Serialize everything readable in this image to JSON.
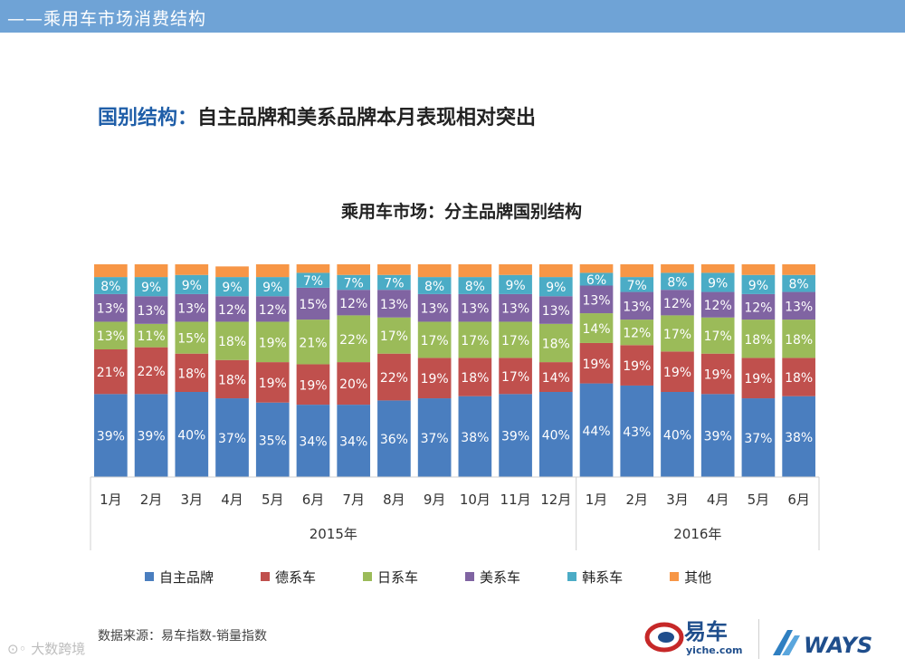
{
  "header": {
    "title": "——乘用车市场消费结构"
  },
  "heading": {
    "prefix": "国别结构",
    "separator": "：",
    "rest": "自主品牌和美系品牌本月表现相对突出"
  },
  "chart_data": {
    "type": "stacked-bar-100",
    "title": "乘用车市场：分主品牌国别结构",
    "categories": [
      "1月",
      "2月",
      "3月",
      "4月",
      "5月",
      "6月",
      "7月",
      "8月",
      "9月",
      "10月",
      "11月",
      "12月",
      "1月",
      "2月",
      "3月",
      "4月",
      "5月",
      "6月"
    ],
    "groups": [
      {
        "label": "2015年",
        "start": 0,
        "end": 11
      },
      {
        "label": "2016年",
        "start": 12,
        "end": 17
      }
    ],
    "series": [
      {
        "name": "自主品牌",
        "color": "#4a7ebf",
        "values": [
          39,
          39,
          40,
          37,
          35,
          34,
          34,
          36,
          37,
          38,
          39,
          40,
          44,
          43,
          40,
          39,
          37,
          38
        ]
      },
      {
        "name": "德系车",
        "color": "#c0504d",
        "values": [
          21,
          22,
          18,
          18,
          19,
          19,
          20,
          22,
          19,
          18,
          17,
          14,
          19,
          19,
          19,
          19,
          19,
          18
        ]
      },
      {
        "name": "日系车",
        "color": "#9bbb59",
        "values": [
          13,
          11,
          15,
          18,
          19,
          21,
          22,
          17,
          17,
          17,
          17,
          18,
          14,
          12,
          17,
          17,
          18,
          18
        ]
      },
      {
        "name": "美系车",
        "color": "#8064a2",
        "values": [
          13,
          13,
          13,
          12,
          12,
          15,
          12,
          13,
          13,
          13,
          13,
          13,
          13,
          13,
          12,
          12,
          12,
          13
        ]
      },
      {
        "name": "韩系车",
        "color": "#4bacc6",
        "values": [
          8,
          9,
          9,
          9,
          9,
          7,
          7,
          7,
          8,
          8,
          9,
          9,
          6,
          7,
          8,
          9,
          9,
          8
        ]
      },
      {
        "name": "其他",
        "color": "#f79646",
        "values": [
          6,
          6,
          5,
          5,
          6,
          4,
          5,
          5,
          6,
          6,
          5,
          6,
          4,
          6,
          4,
          4,
          5,
          5
        ]
      }
    ],
    "label_suffix": "%",
    "hidden_label_series": [
      "其他"
    ],
    "ylim": [
      0,
      100
    ]
  },
  "source": "数据来源：易车指数-销量指数",
  "watermark": "大数跨境",
  "logos": {
    "yiche_name": "易车",
    "yiche_domain": "yiche.com",
    "ways": "WAYS"
  },
  "colors": {
    "topbar": "#6fa3d6",
    "heading_blue": "#1f5ea8"
  }
}
